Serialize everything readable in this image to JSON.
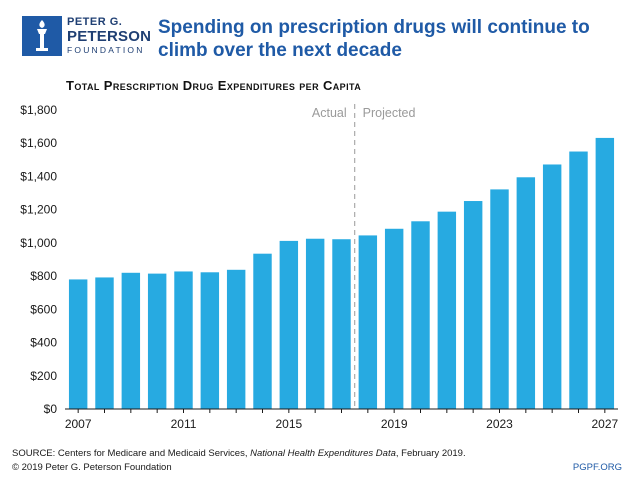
{
  "logo": {
    "line1": "PETER G.",
    "line2": "PETERSON",
    "line3": "FOUNDATION"
  },
  "headline": "Spending on prescription drugs will continue to climb over the next decade",
  "footer": {
    "source_prefix": "SOURCE: Centers for Medicare and Medicaid Services, ",
    "source_italic": "National Health Expenditures Data",
    "source_suffix": ", February 2019.",
    "copyright": "© 2019 Peter G. Peterson Foundation",
    "site": "PGPF.ORG"
  },
  "colors": {
    "bar": "#27aae1",
    "brand": "#1f5aa6",
    "divider": "#aaaaaa"
  },
  "chart_data": {
    "type": "bar",
    "title": "Total Prescription Drug Expenditures per Capita",
    "xlabel": "",
    "ylabel": "",
    "ylim": [
      0,
      1800
    ],
    "y_ticks": [
      0,
      200,
      400,
      600,
      800,
      1000,
      1200,
      1400,
      1600,
      1800
    ],
    "y_tick_labels": [
      "$0",
      "$200",
      "$400",
      "$600",
      "$800",
      "$1,000",
      "$1,200",
      "$1,400",
      "$1,600",
      "$1,800"
    ],
    "categories": [
      "2007",
      "2008",
      "2009",
      "2010",
      "2011",
      "2012",
      "2013",
      "2014",
      "2015",
      "2016",
      "2017",
      "2018",
      "2019",
      "2020",
      "2021",
      "2022",
      "2023",
      "2024",
      "2025",
      "2026",
      "2027"
    ],
    "x_tick_labels": [
      "2007",
      "2011",
      "2015",
      "2019",
      "2023",
      "2027"
    ],
    "values": [
      780,
      792,
      820,
      815,
      828,
      823,
      838,
      935,
      1012,
      1025,
      1022,
      1045,
      1085,
      1130,
      1188,
      1252,
      1322,
      1395,
      1472,
      1550,
      1632
    ],
    "annotations": {
      "actual_label": "Actual",
      "projected_label": "Projected",
      "divider_between": [
        "2017",
        "2018"
      ]
    },
    "grid": false
  }
}
